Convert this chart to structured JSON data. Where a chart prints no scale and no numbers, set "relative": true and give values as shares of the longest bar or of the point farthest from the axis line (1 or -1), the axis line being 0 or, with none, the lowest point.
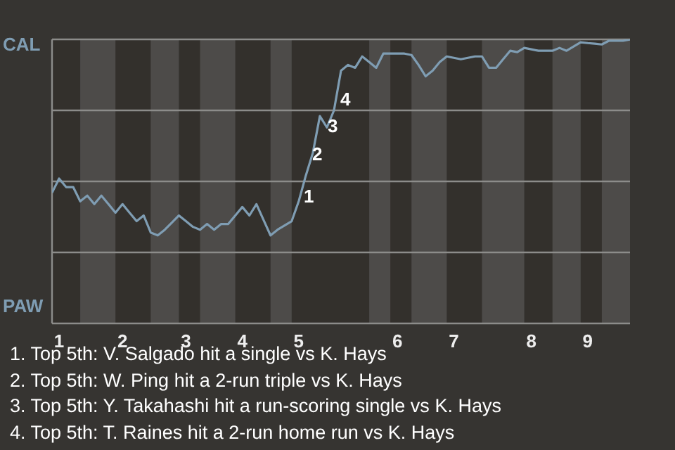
{
  "chart_data": {
    "type": "line",
    "relative": true,
    "categories": [
      null,
      "1",
      null,
      null,
      null,
      null,
      null,
      null,
      null,
      null,
      "2",
      null,
      null,
      null,
      null,
      null,
      null,
      null,
      null,
      "3",
      null,
      null,
      null,
      null,
      null,
      null,
      null,
      "4",
      null,
      null,
      null,
      null,
      null,
      null,
      null,
      "5",
      null,
      null,
      null,
      null,
      null,
      null,
      null,
      null,
      null,
      null,
      null,
      null,
      null,
      "6",
      null,
      null,
      null,
      null,
      null,
      null,
      null,
      "7",
      null,
      null,
      null,
      null,
      null,
      null,
      null,
      null,
      null,
      null,
      "8",
      null,
      null,
      null,
      null,
      null,
      null,
      null,
      "9",
      null,
      null,
      null,
      null,
      null,
      null
    ],
    "series": [
      {
        "color": "#7f9db3",
        "values": [
          0.46,
          0.51,
          0.48,
          0.48,
          0.43,
          0.45,
          0.42,
          0.45,
          0.42,
          0.39,
          0.42,
          0.39,
          0.36,
          0.38,
          0.32,
          0.31,
          0.33,
          0.355,
          0.38,
          0.36,
          0.34,
          0.33,
          0.35,
          0.33,
          0.35,
          0.35,
          0.38,
          0.41,
          0.38,
          0.42,
          0.365,
          0.31,
          0.33,
          0.345,
          0.36,
          0.43,
          0.52,
          0.6,
          0.73,
          0.69,
          0.75,
          0.89,
          0.91,
          0.9,
          0.94,
          0.92,
          0.9,
          0.95,
          0.95,
          0.95,
          0.95,
          0.945,
          0.91,
          0.87,
          0.89,
          0.92,
          0.94,
          0.935,
          0.93,
          0.935,
          0.94,
          0.94,
          0.9,
          0.9,
          0.93,
          0.96,
          0.955,
          0.97,
          0.965,
          0.96,
          0.96,
          0.96,
          0.97,
          0.96,
          0.975,
          0.99,
          0.987,
          0.985,
          0.982,
          0.995,
          0.995,
          0.995,
          1
        ]
      }
    ],
    "grid": "y",
    "marker": "none",
    "line_style": "solid",
    "annotations": [
      "CAL",
      "PAW",
      "1",
      "2",
      "3",
      "4",
      "1. Top 5th: V. Salgado hit a single vs K. Hays",
      "2. Top 5th: W. Ping hit a 2-run triple vs K. Hays",
      "3. Top 5th: Y. Takahashi hit a run-scoring single vs K. Hays",
      "4. Top 5th: T. Raines hit a 2-run home run vs K. Hays"
    ]
  }
}
